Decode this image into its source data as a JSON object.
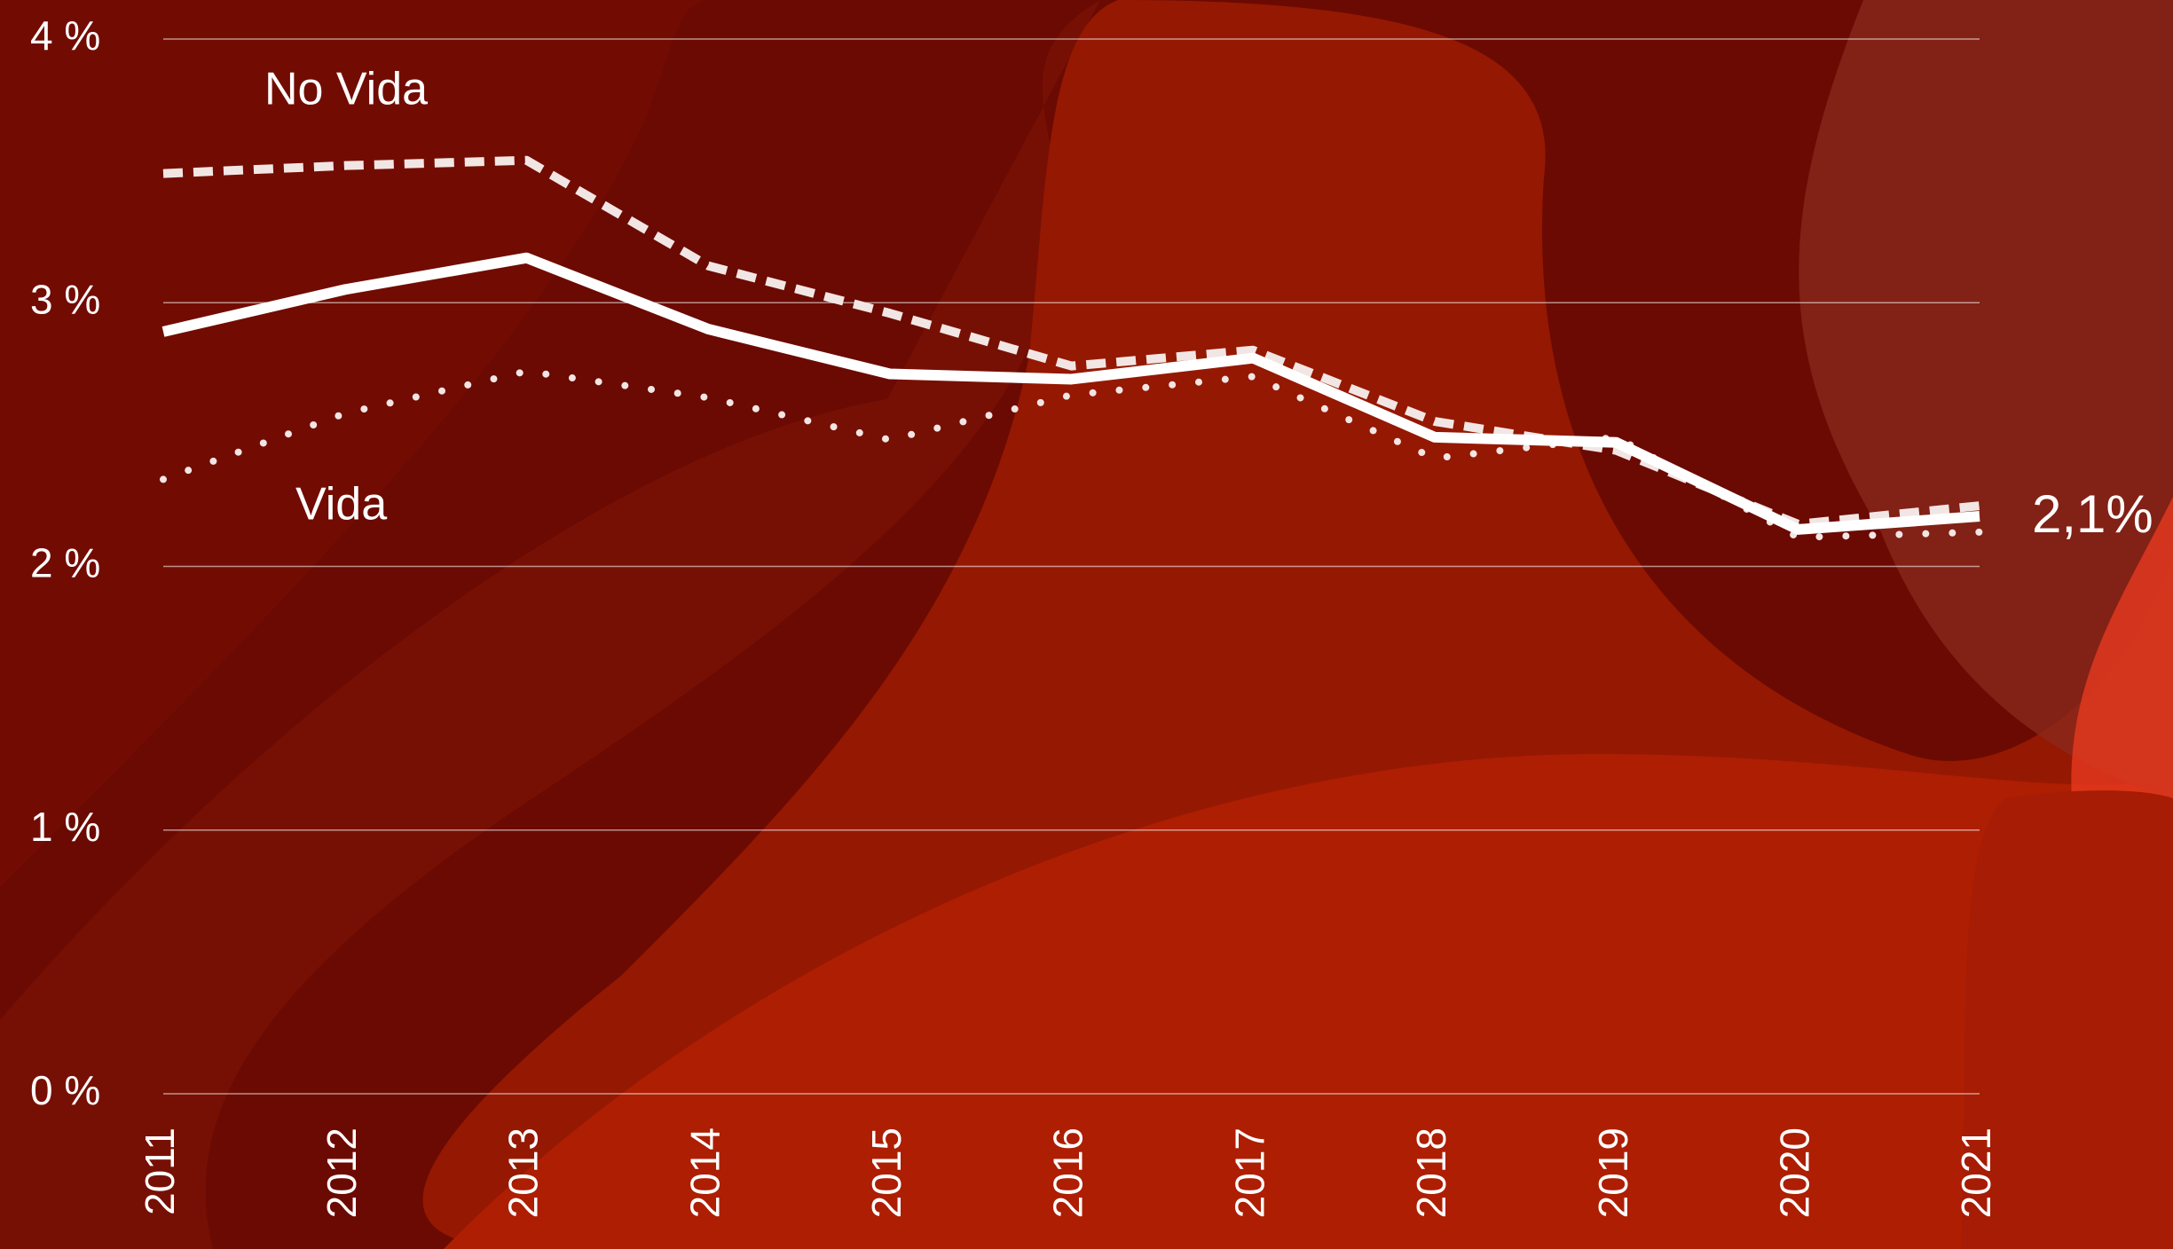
{
  "chart_data": {
    "type": "line",
    "categories": [
      "2011",
      "2012",
      "2013",
      "2014",
      "2015",
      "2016",
      "2017",
      "2018",
      "2019",
      "2020",
      "2021"
    ],
    "series": [
      {
        "color": "#ffffff",
        "style": "solid",
        "values": [
          2.89,
          3.05,
          3.17,
          2.9,
          2.73,
          2.71,
          2.79,
          2.49,
          2.47,
          2.14,
          2.19
        ]
      },
      {
        "name": "No Vida",
        "color": "#f2e6e4",
        "style": "dashed",
        "values": [
          3.49,
          3.52,
          3.54,
          3.14,
          2.96,
          2.76,
          2.82,
          2.55,
          2.44,
          2.16,
          2.23
        ]
      },
      {
        "name": "Vida",
        "color": "#f2e6e4",
        "style": "dotted",
        "values": [
          2.33,
          2.58,
          2.74,
          2.64,
          2.48,
          2.65,
          2.72,
          2.41,
          2.49,
          2.11,
          2.13
        ]
      }
    ],
    "annotations": [
      "2,1%"
    ],
    "ylim": [
      0,
      4
    ],
    "yticks": [
      {
        "value": 0,
        "label": "0 %"
      },
      {
        "value": 1,
        "label": "1 %"
      },
      {
        "value": 2,
        "label": "2 %"
      },
      {
        "value": 3,
        "label": "3 %"
      },
      {
        "value": 4,
        "label": "4 %"
      }
    ],
    "grid": true
  }
}
